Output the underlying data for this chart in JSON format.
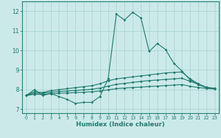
{
  "xlabel": "Humidex (Indice chaleur)",
  "xlim": [
    -0.5,
    23.5
  ],
  "ylim": [
    6.8,
    12.5
  ],
  "yticks": [
    7,
    8,
    9,
    10,
    11,
    12
  ],
  "xticks": [
    0,
    1,
    2,
    3,
    4,
    5,
    6,
    7,
    8,
    9,
    10,
    11,
    12,
    13,
    14,
    15,
    16,
    17,
    18,
    19,
    20,
    21,
    22,
    23
  ],
  "background_color": "#cce9e9",
  "line_color": "#1e7b6e",
  "grid_color": "#aad4d4",
  "line1_x": [
    0,
    1,
    2,
    3,
    4,
    5,
    6,
    7,
    8,
    9,
    10,
    11,
    12,
    13,
    14,
    15,
    16,
    17,
    18,
    19,
    20,
    21,
    22,
    23
  ],
  "line1_y": [
    7.7,
    8.0,
    7.7,
    7.8,
    7.65,
    7.5,
    7.3,
    7.35,
    7.35,
    7.65,
    8.55,
    11.85,
    11.55,
    11.95,
    11.65,
    9.95,
    10.35,
    10.05,
    9.35,
    8.95,
    8.5,
    8.25,
    8.1,
    8.05
  ],
  "line2_x": [
    0,
    1,
    2,
    3,
    4,
    5,
    6,
    7,
    8,
    9,
    10,
    11,
    12,
    13,
    14,
    15,
    16,
    17,
    18,
    19,
    20,
    21,
    22,
    23
  ],
  "line2_y": [
    7.7,
    7.9,
    7.85,
    7.95,
    8.0,
    8.05,
    8.1,
    8.15,
    8.2,
    8.3,
    8.45,
    8.55,
    8.6,
    8.65,
    8.7,
    8.75,
    8.8,
    8.85,
    8.88,
    8.9,
    8.55,
    8.3,
    8.1,
    8.05
  ],
  "line3_x": [
    0,
    1,
    2,
    3,
    4,
    5,
    6,
    7,
    8,
    9,
    10,
    11,
    12,
    13,
    14,
    15,
    16,
    17,
    18,
    19,
    20,
    21,
    22,
    23
  ],
  "line3_y": [
    7.7,
    7.82,
    7.82,
    7.87,
    7.9,
    7.93,
    7.96,
    7.99,
    8.02,
    8.08,
    8.18,
    8.27,
    8.32,
    8.37,
    8.42,
    8.46,
    8.49,
    8.52,
    8.55,
    8.58,
    8.42,
    8.28,
    8.12,
    8.07
  ],
  "line4_x": [
    0,
    1,
    2,
    3,
    4,
    5,
    6,
    7,
    8,
    9,
    10,
    11,
    12,
    13,
    14,
    15,
    16,
    17,
    18,
    19,
    20,
    21,
    22,
    23
  ],
  "line4_y": [
    7.7,
    7.76,
    7.76,
    7.79,
    7.81,
    7.83,
    7.85,
    7.87,
    7.89,
    7.93,
    7.99,
    8.05,
    8.08,
    8.11,
    8.13,
    8.16,
    8.18,
    8.21,
    8.23,
    8.26,
    8.17,
    8.11,
    8.06,
    8.03
  ]
}
